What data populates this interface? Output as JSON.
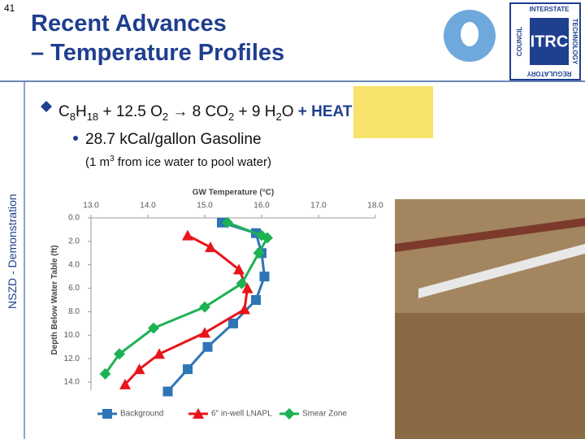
{
  "slide": {
    "number": "41",
    "title_lines": [
      "Recent Advances",
      "– Temperature Profiles"
    ],
    "formula": [
      "C",
      "8",
      "H",
      "18",
      " + 12.5 O",
      "2",
      " → 8 CO",
      "2",
      " + 9 H",
      "2",
      "O "
    ],
    "heat": "+ HEAT",
    "sub_bullet": "28.7 kCal/gallon Gasoline",
    "note": [
      "(1 m",
      "3",
      " from ice water to pool water)"
    ],
    "side_label": "NSZD - Demonstration",
    "logo": {
      "top": "INTERSTATE",
      "right": "TECHNOLOGY",
      "bottom": "REGULATORY",
      "left": "COUNCIL",
      "center": "ITRC"
    }
  },
  "chart_data": {
    "type": "line",
    "x_label": "GW Temperature (°C)",
    "y_label": "Depth Below Water Table (ft)",
    "xlim": [
      13,
      18
    ],
    "ylim": [
      0,
      14
    ],
    "y_inverted": true,
    "x_axis_position": "top",
    "xticks": [
      {
        "value": 13,
        "label": "13.0"
      },
      {
        "value": 14,
        "label": "14.0"
      },
      {
        "value": 15,
        "label": "15.0"
      },
      {
        "value": 16,
        "label": "16.0"
      },
      {
        "value": 17,
        "label": "17.0"
      },
      {
        "value": 18,
        "label": "18.0"
      }
    ],
    "yticks": [
      {
        "value": 0,
        "label": "0.0"
      },
      {
        "value": 2,
        "label": "2.0"
      },
      {
        "value": 4,
        "label": "4.0"
      },
      {
        "value": 6,
        "label": "6.0"
      },
      {
        "value": 8,
        "label": "8.0"
      },
      {
        "value": 10,
        "label": "10.0"
      },
      {
        "value": 12,
        "label": "12.0"
      },
      {
        "value": 14,
        "label": "14.0"
      }
    ],
    "legend": "bottom",
    "series": [
      {
        "name": "Background",
        "color": "#2e75b6",
        "marker": "square",
        "x": [
          15.3,
          15.9,
          16.0,
          16.05,
          15.9,
          15.5,
          15.05,
          14.7,
          14.35
        ],
        "values": [
          0.4,
          1.3,
          3.0,
          5.0,
          7.0,
          9.0,
          11.0,
          12.9,
          14.8
        ]
      },
      {
        "name": "6\" in-well LNAPL",
        "color": "#e8151b",
        "marker": "triangle",
        "x": [
          14.7,
          15.1,
          15.6,
          15.75,
          15.7,
          15.0,
          14.2,
          13.85,
          13.6
        ],
        "values": [
          1.5,
          2.5,
          4.4,
          6.0,
          7.8,
          9.8,
          11.6,
          12.9,
          14.2
        ]
      },
      {
        "name": "Smear Zone",
        "color": "#1db254",
        "marker": "diamond",
        "x": [
          15.4,
          16.0,
          16.1,
          15.95,
          15.65,
          15.0,
          14.1,
          13.5,
          13.25
        ],
        "values": [
          0.4,
          1.5,
          1.7,
          3.0,
          5.6,
          7.6,
          9.4,
          11.6,
          13.3
        ]
      }
    ]
  }
}
